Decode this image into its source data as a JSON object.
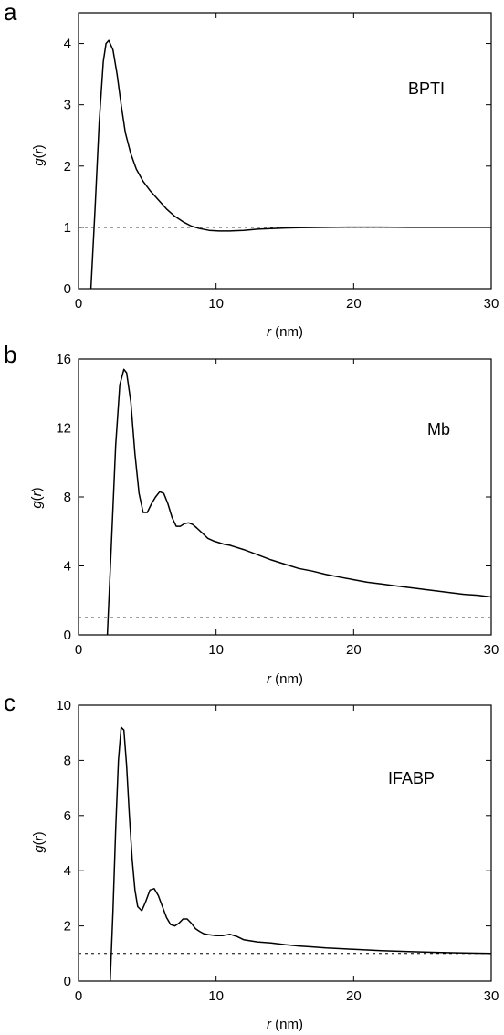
{
  "chart_data": [
    {
      "type": "line",
      "panel": "a",
      "label": "BPTI",
      "xlabel_var": "r",
      "xlabel_unit": " (nm)",
      "ylabel_var": "g",
      "ylabel_arg": "r",
      "xlim": [
        0,
        30
      ],
      "ylim": [
        0,
        4.5
      ],
      "xticks": [
        0,
        10,
        20,
        30
      ],
      "yticks": [
        0,
        1,
        2,
        3,
        4
      ],
      "reference_line": 1,
      "series": [
        {
          "x": [
            0.9,
            1.2,
            1.5,
            1.8,
            2.0,
            2.2,
            2.5,
            2.8,
            3.1,
            3.4,
            3.8,
            4.2,
            4.7,
            5.2,
            5.8,
            6.4,
            7.0,
            7.6,
            8.2,
            8.8,
            9.5,
            10.2,
            11.0,
            12.0,
            13.0,
            14.0,
            15.0,
            16.0,
            18.0,
            20.0,
            22.0,
            24.0,
            26.0,
            28.0,
            30.0
          ],
          "y": [
            0.0,
            1.3,
            2.7,
            3.7,
            4.0,
            4.05,
            3.9,
            3.5,
            3.0,
            2.55,
            2.2,
            1.95,
            1.75,
            1.6,
            1.45,
            1.3,
            1.18,
            1.09,
            1.02,
            0.98,
            0.95,
            0.94,
            0.94,
            0.95,
            0.97,
            0.98,
            0.99,
            0.995,
            1.0,
            1.005,
            1.005,
            1.0,
            1.0,
            1.0,
            1.0
          ]
        }
      ]
    },
    {
      "type": "line",
      "panel": "b",
      "label": "Mb",
      "xlabel_var": "r",
      "xlabel_unit": " (nm)",
      "ylabel_var": "g",
      "ylabel_arg": "r",
      "xlim": [
        0,
        30
      ],
      "ylim": [
        0,
        16
      ],
      "xticks": [
        0,
        10,
        20,
        30
      ],
      "yticks": [
        0,
        4,
        8,
        12,
        16
      ],
      "reference_line": 1,
      "series": [
        {
          "x": [
            2.1,
            2.4,
            2.7,
            3.0,
            3.3,
            3.5,
            3.8,
            4.1,
            4.4,
            4.7,
            5.0,
            5.3,
            5.6,
            5.9,
            6.2,
            6.5,
            6.8,
            7.1,
            7.4,
            7.7,
            8.0,
            8.3,
            8.6,
            9.0,
            9.4,
            9.8,
            10.2,
            10.6,
            11.0,
            12.0,
            13.0,
            14.0,
            15.0,
            16.0,
            17.0,
            18.0,
            19.0,
            20.0,
            21.0,
            22.0,
            23.0,
            24.0,
            25.0,
            26.0,
            27.0,
            28.0,
            29.0,
            30.0
          ],
          "y": [
            0.0,
            5.5,
            11.0,
            14.5,
            15.4,
            15.2,
            13.5,
            10.5,
            8.2,
            7.1,
            7.1,
            7.6,
            8.0,
            8.3,
            8.2,
            7.6,
            6.8,
            6.3,
            6.3,
            6.45,
            6.5,
            6.4,
            6.2,
            5.9,
            5.6,
            5.45,
            5.35,
            5.25,
            5.2,
            4.95,
            4.65,
            4.35,
            4.1,
            3.85,
            3.7,
            3.5,
            3.35,
            3.2,
            3.05,
            2.95,
            2.85,
            2.75,
            2.65,
            2.55,
            2.45,
            2.35,
            2.3,
            2.2
          ]
        }
      ]
    },
    {
      "type": "line",
      "panel": "c",
      "label": "IFABP",
      "xlabel_var": "r",
      "xlabel_unit": " (nm)",
      "ylabel_var": "g",
      "ylabel_arg": "r",
      "xlim": [
        0,
        30
      ],
      "ylim": [
        0,
        10
      ],
      "xticks": [
        0,
        10,
        20,
        30
      ],
      "yticks": [
        0,
        2,
        4,
        6,
        8,
        10
      ],
      "reference_line": 1,
      "series": [
        {
          "x": [
            2.3,
            2.5,
            2.7,
            2.9,
            3.1,
            3.3,
            3.5,
            3.7,
            3.9,
            4.1,
            4.3,
            4.6,
            4.9,
            5.2,
            5.5,
            5.8,
            6.1,
            6.4,
            6.7,
            7.0,
            7.3,
            7.6,
            7.9,
            8.2,
            8.5,
            8.8,
            9.1,
            9.5,
            10.0,
            10.5,
            11.0,
            11.5,
            12.0,
            13.0,
            14.0,
            15.0,
            16.0,
            17.0,
            18.0,
            20.0,
            22.0,
            24.0,
            26.0,
            28.0,
            30.0
          ],
          "y": [
            0.0,
            2.5,
            5.5,
            8.0,
            9.2,
            9.1,
            7.8,
            6.0,
            4.4,
            3.3,
            2.7,
            2.55,
            2.9,
            3.3,
            3.35,
            3.1,
            2.7,
            2.3,
            2.05,
            2.0,
            2.1,
            2.25,
            2.25,
            2.1,
            1.9,
            1.8,
            1.72,
            1.68,
            1.65,
            1.65,
            1.7,
            1.62,
            1.5,
            1.42,
            1.38,
            1.32,
            1.27,
            1.24,
            1.2,
            1.15,
            1.1,
            1.07,
            1.04,
            1.02,
            1.0
          ]
        }
      ]
    }
  ]
}
